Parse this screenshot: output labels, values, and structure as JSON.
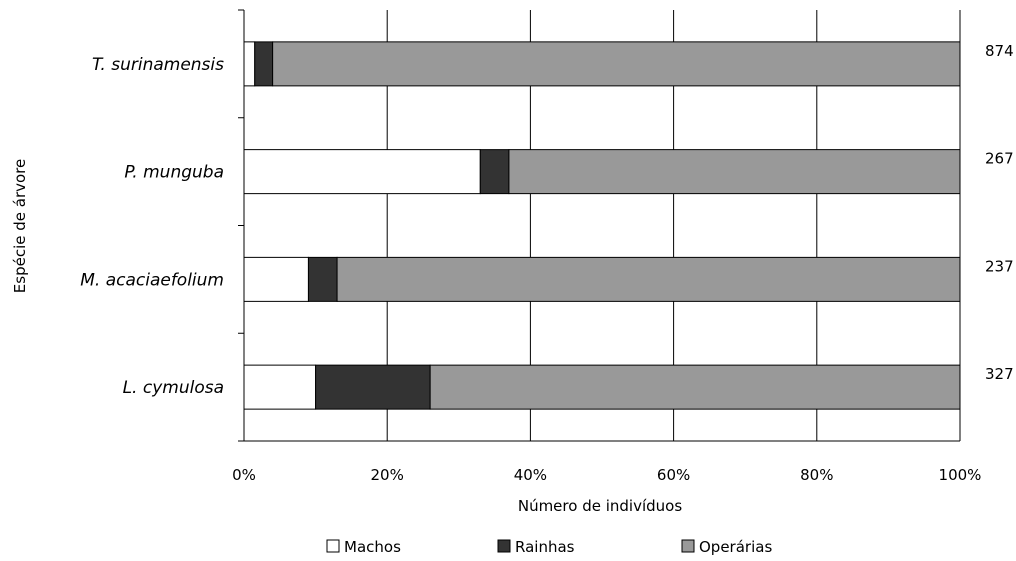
{
  "chart_data": {
    "type": "bar",
    "orientation": "horizontal",
    "stacked": "percent",
    "categories": [
      "T. surinamensis",
      "P. munguba",
      "M. acaciaefolium",
      "L. cymulosa"
    ],
    "totals": [
      "874",
      "267",
      "237",
      "327"
    ],
    "series": [
      {
        "name": "Machos",
        "values": [
          1.5,
          33,
          9,
          10
        ],
        "color": "#ffffff"
      },
      {
        "name": "Rainhas",
        "values": [
          2.5,
          4,
          4,
          16
        ],
        "color": "#333333"
      },
      {
        "name": "Operárias",
        "values": [
          96,
          63,
          87,
          74
        ],
        "color": "#999999"
      }
    ],
    "xlabel": "Número de indivíduos",
    "ylabel": "Espécie de árvore",
    "xlim": [
      0,
      100
    ],
    "xticks": [
      "0%",
      "20%",
      "40%",
      "60%",
      "80%",
      "100%"
    ],
    "grid": true,
    "legend_position": "bottom"
  }
}
